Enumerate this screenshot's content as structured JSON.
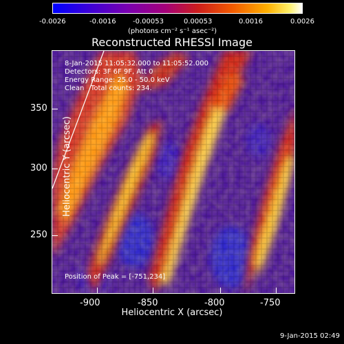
{
  "colorbar": {
    "ticks": [
      "-0.0026",
      "-0.0016",
      "-0.00053",
      "0.00053",
      "0.0016",
      "0.0026"
    ],
    "unit": "(photons cm⁻² s⁻¹ asec⁻²)"
  },
  "title": "Reconstructed RHESSI Image",
  "annotations": {
    "time_range": "8-Jan-2015 11:05:32.000 to 11:05:52.000",
    "detectors": "Detectors: 3F 6F 9F, Att 0",
    "energy": "Energy Range: 25.0 - 50.0 keV",
    "clean": "Clean   Total counts: 234.",
    "peak": "Position of Peak = [-751,234]"
  },
  "x_axis": {
    "label": "Heliocentric X (arcsec)",
    "ticks": [
      "-900",
      "-850",
      "-800",
      "-750"
    ]
  },
  "y_axis": {
    "label": "Heliocentric Y (arcsec)",
    "ticks": [
      "350",
      "300",
      "250"
    ]
  },
  "timestamp": "9-Jan-2015 02:49"
}
